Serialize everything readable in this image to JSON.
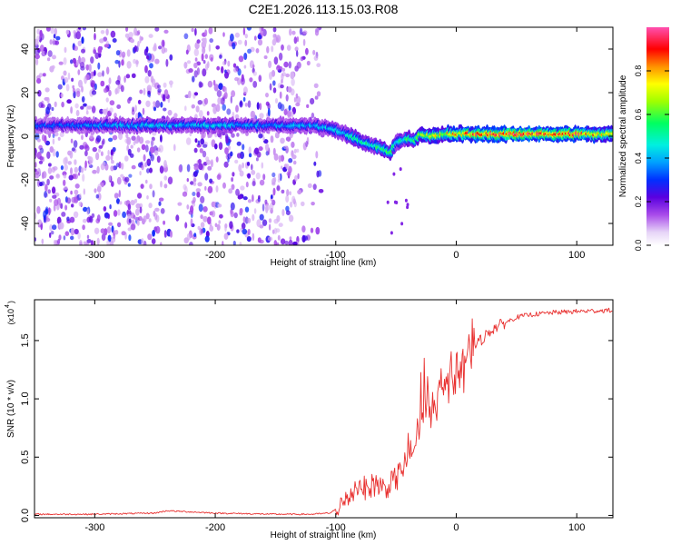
{
  "title": "C2E1.2026.113.15.03.R08",
  "chart_data": [
    {
      "type": "heatmap",
      "name": "spectrogram",
      "xlabel": "Height of straight line (km)",
      "ylabel": "Frequency (Hz)",
      "xlim": [
        -350,
        130
      ],
      "ylim": [
        -50,
        50
      ],
      "x_ticks": [
        -300,
        -200,
        -100,
        0,
        100
      ],
      "y_ticks": [
        -40,
        -20,
        0,
        20,
        40
      ],
      "colorbar": {
        "label": "Normalized spectral amplitude",
        "range": [
          0.0,
          1.0
        ],
        "ticks": [
          0.0,
          0.2,
          0.4,
          0.6,
          0.8
        ],
        "tick_labels": [
          "0.0",
          "0.2",
          "0.4",
          "0.6",
          "0.8"
        ]
      },
      "ridge": {
        "x": [
          -350,
          -300,
          -250,
          -200,
          -150,
          -120,
          -100,
          -80,
          -70,
          -60,
          -55,
          -50,
          -45,
          -40,
          -35,
          -30,
          -20,
          -10,
          0,
          20,
          50,
          100,
          130
        ],
        "freq_hz": [
          5,
          5,
          5,
          5,
          5,
          5,
          3,
          -2,
          -4,
          -6,
          -8,
          -3,
          -2,
          -1,
          -2,
          1,
          0,
          1,
          1,
          1,
          1,
          1,
          1
        ],
        "peak_amplitude": [
          0.35,
          0.4,
          0.45,
          0.45,
          0.4,
          0.45,
          0.5,
          0.55,
          0.55,
          0.6,
          0.6,
          0.55,
          0.55,
          0.6,
          0.6,
          0.7,
          0.75,
          0.8,
          0.85,
          0.95,
          1.0,
          0.95,
          0.8
        ]
      },
      "noise_x_range": [
        -350,
        -110
      ]
    },
    {
      "type": "line",
      "name": "snr",
      "xlabel": "Height of straight line (km)",
      "ylabel": "SNR (10 * v/v)",
      "y_scale_label": "(x10",
      "y_scale_exp": "4",
      "xlim": [
        -350,
        130
      ],
      "ylim": [
        -0.02,
        1.85
      ],
      "x_ticks": [
        -300,
        -200,
        -100,
        0,
        100
      ],
      "y_ticks": [
        0.0,
        0.5,
        1.0,
        1.5
      ],
      "y_tick_labels": [
        "0.0",
        "0.5",
        "1.0",
        "1.5"
      ],
      "series": [
        {
          "name": "SNR",
          "color": "#e8302f",
          "x": [
            -350,
            -300,
            -250,
            -240,
            -200,
            -150,
            -120,
            -105,
            -95,
            -90,
            -85,
            -80,
            -75,
            -70,
            -65,
            -60,
            -55,
            -50,
            -45,
            -40,
            -35,
            -30,
            -25,
            -20,
            -15,
            -10,
            -5,
            0,
            5,
            10,
            20,
            30,
            40,
            50,
            60,
            80,
            100,
            130
          ],
          "values": [
            0.01,
            0.01,
            0.02,
            0.04,
            0.02,
            0.01,
            0.01,
            0.02,
            0.08,
            0.15,
            0.22,
            0.27,
            0.22,
            0.25,
            0.28,
            0.22,
            0.27,
            0.32,
            0.4,
            0.5,
            0.6,
            0.75,
            0.95,
            1.0,
            1.05,
            1.1,
            1.15,
            1.2,
            1.3,
            1.4,
            1.5,
            1.6,
            1.65,
            1.7,
            1.72,
            1.74,
            1.75,
            1.76
          ]
        }
      ]
    }
  ]
}
